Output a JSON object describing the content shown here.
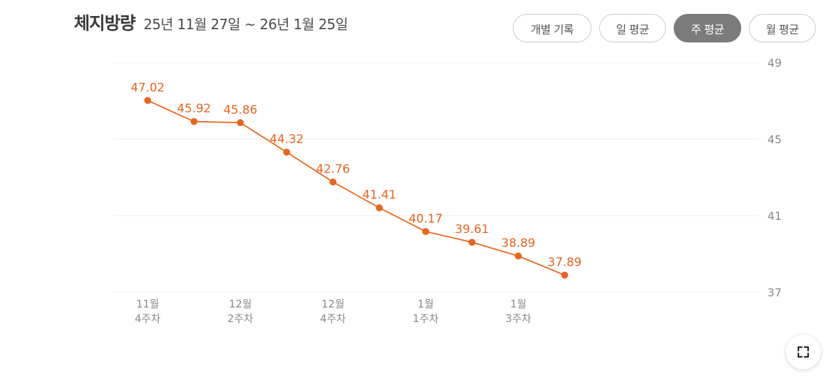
{
  "header": {
    "title": "체지방량",
    "date_range": "25년 11월 27일 ~ 26년 1월 25일"
  },
  "tabs": [
    {
      "label": "개별 기록",
      "active": false
    },
    {
      "label": "일 평균",
      "active": false
    },
    {
      "label": "주 평균",
      "active": true
    },
    {
      "label": "월 평균",
      "active": false
    }
  ],
  "expand_button": {
    "icon": "expand-icon"
  },
  "colors": {
    "line": "#e8651c",
    "grid": "#ececec",
    "axis_text": "#888888",
    "active_tab": "#7b7b7b"
  },
  "chart_data": {
    "type": "line",
    "title": "",
    "xlabel": "",
    "ylabel": "",
    "ylim": [
      37,
      49
    ],
    "y_ticks": [
      37,
      41,
      45,
      49
    ],
    "y_axis_position": "right",
    "grid": true,
    "x_ticks": [
      {
        "index": 0,
        "label": [
          "11월",
          "4주차"
        ]
      },
      {
        "index": 2,
        "label": [
          "12월",
          "2주차"
        ]
      },
      {
        "index": 4,
        "label": [
          "12월",
          "4주차"
        ]
      },
      {
        "index": 6,
        "label": [
          "1월",
          "1주차"
        ]
      },
      {
        "index": 8,
        "label": [
          "1월",
          "3주차"
        ]
      }
    ],
    "series": [
      {
        "values": [
          47.02,
          45.92,
          45.86,
          44.32,
          42.76,
          41.41,
          40.17,
          39.61,
          38.89,
          37.89
        ],
        "labels": [
          "47.02",
          "45.92",
          "45.86",
          "44.32",
          "42.76",
          "41.41",
          "40.17",
          "39.61",
          "38.89",
          "37.89"
        ]
      }
    ]
  }
}
